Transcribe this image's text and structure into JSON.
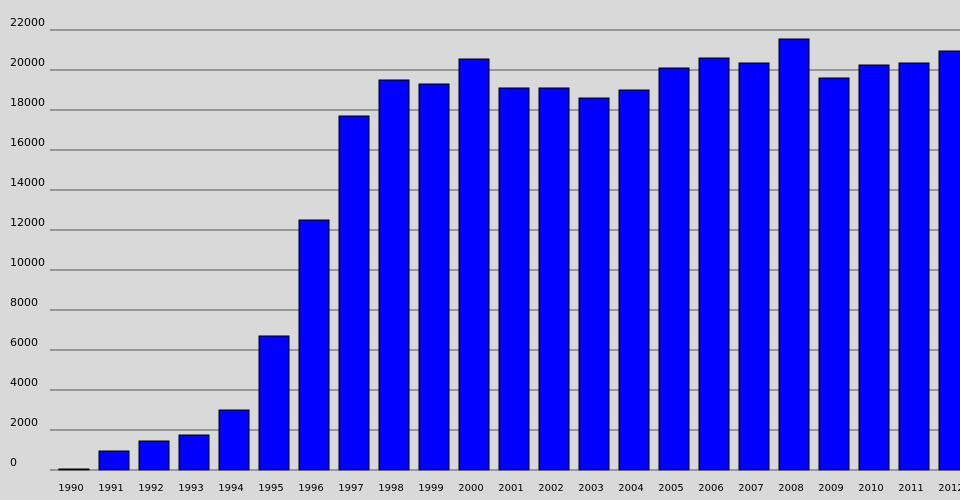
{
  "chart_data": {
    "type": "bar",
    "categories": [
      "1990",
      "1991",
      "1992",
      "1993",
      "1994",
      "1995",
      "1996",
      "1997",
      "1998",
      "1999",
      "2000",
      "2001",
      "2002",
      "2003",
      "2004",
      "2005",
      "2006",
      "2007",
      "2008",
      "2009",
      "2010",
      "2011",
      "2012"
    ],
    "values": [
      50,
      950,
      1450,
      1750,
      3000,
      6700,
      12500,
      17700,
      19500,
      19300,
      20550,
      19100,
      19100,
      18600,
      19000,
      20100,
      20600,
      20350,
      21550,
      19600,
      20250,
      20350,
      20950
    ],
    "color": "#0000ff",
    "ylim": [
      0,
      22000
    ],
    "yticks": [
      0,
      2000,
      4000,
      6000,
      8000,
      10000,
      12000,
      14000,
      16000,
      18000,
      20000,
      22000
    ],
    "grid": true
  }
}
